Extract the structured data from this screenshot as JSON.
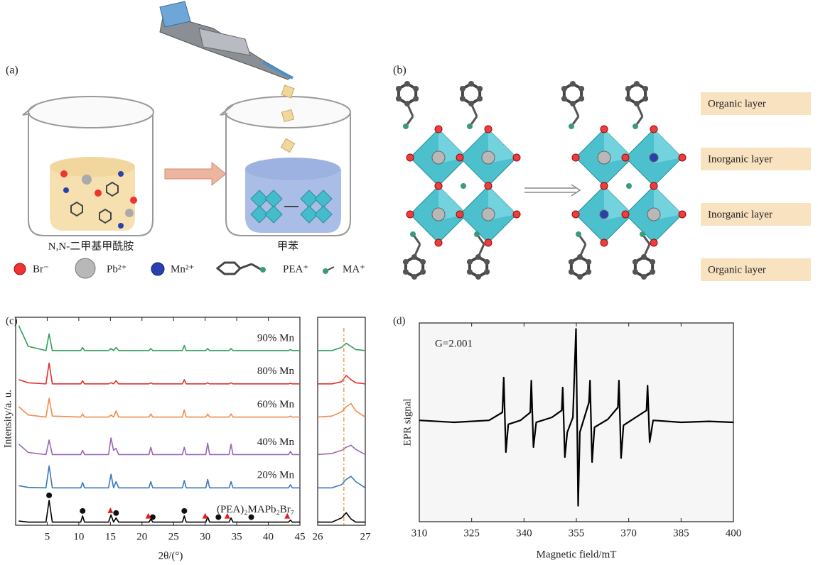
{
  "panel_a": {
    "label": "(a)",
    "solvent_left": "N,N-二甲基甲酰胺",
    "solvent_right": "甲苯",
    "legend": [
      "Br⁻",
      "Pb²⁺",
      "Mn²⁺",
      "PEA⁺",
      "MA⁺"
    ]
  },
  "panel_b": {
    "label": "(b)",
    "layers": [
      "Organic layer",
      "Inorganic layer",
      "Inorganic layer",
      "Organic layer"
    ]
  },
  "chart_data": [
    {
      "type": "line",
      "panel_label": "(c)",
      "xlabel": "2θ/(°)",
      "ylabel": "Intensity/a. u.",
      "xlim": [
        0,
        45
      ],
      "ylim": [
        0,
        10
      ],
      "xticks": [
        5,
        10,
        15,
        20,
        25,
        30,
        35,
        40,
        45
      ],
      "x": [
        0.5,
        2,
        4.8,
        5.3,
        5.8,
        10.3,
        10.6,
        10.9,
        14.7,
        15.1,
        15.5,
        15.9,
        16.3,
        21.1,
        21.4,
        21.7,
        26.4,
        26.7,
        27.0,
        30.1,
        30.4,
        30.7,
        33.8,
        34.1,
        34.4,
        43.2,
        43.5,
        43.8,
        45
      ],
      "series": [
        {
          "name": "90% Mn",
          "color": "#2e9e5a",
          "values": [
            9.6,
            8.6,
            8.4,
            9.2,
            8.4,
            8.4,
            8.55,
            8.4,
            8.4,
            8.5,
            8.4,
            8.55,
            8.4,
            8.4,
            8.5,
            8.4,
            8.4,
            8.65,
            8.4,
            8.4,
            8.5,
            8.4,
            8.4,
            8.5,
            8.4,
            8.4,
            8.45,
            8.4,
            8.4
          ]
        },
        {
          "name": "80% Mn",
          "color": "#e03030",
          "values": [
            7.0,
            6.85,
            6.8,
            7.8,
            6.8,
            6.8,
            6.95,
            6.8,
            6.8,
            6.85,
            6.8,
            6.95,
            6.8,
            6.8,
            6.85,
            6.8,
            6.8,
            7.0,
            6.8,
            6.8,
            6.85,
            6.8,
            6.8,
            6.85,
            6.8,
            6.8,
            6.82,
            6.8,
            6.8
          ]
        },
        {
          "name": "60% Mn",
          "color": "#f08c4a",
          "values": [
            5.7,
            5.3,
            5.2,
            6.1,
            5.25,
            5.2,
            5.35,
            5.2,
            5.2,
            5.3,
            5.2,
            5.5,
            5.2,
            5.2,
            5.35,
            5.2,
            5.2,
            5.55,
            5.2,
            5.2,
            5.35,
            5.2,
            5.2,
            5.35,
            5.2,
            5.2,
            5.25,
            5.2,
            5.2
          ]
        },
        {
          "name": "40% Mn",
          "color": "#9966bb",
          "values": [
            3.9,
            3.5,
            3.4,
            4.1,
            3.4,
            3.4,
            3.6,
            3.4,
            3.4,
            4.2,
            3.6,
            3.7,
            3.4,
            3.4,
            3.75,
            3.4,
            3.4,
            3.75,
            3.4,
            3.4,
            3.95,
            3.4,
            3.4,
            3.9,
            3.4,
            3.4,
            3.55,
            3.4,
            3.4
          ]
        },
        {
          "name": "20% Mn",
          "color": "#3a78c0",
          "values": [
            1.9,
            1.82,
            1.8,
            2.85,
            1.8,
            1.8,
            2.05,
            1.8,
            1.8,
            2.45,
            1.8,
            2.1,
            1.8,
            1.8,
            2.1,
            1.8,
            1.8,
            2.15,
            1.8,
            1.8,
            2.2,
            1.8,
            1.8,
            2.1,
            1.8,
            1.8,
            1.95,
            1.8,
            1.8
          ]
        },
        {
          "name": "(PEA)₂MAPb₂Br₇",
          "color": "#000000",
          "values": [
            0.2,
            0.15,
            0.15,
            1.2,
            0.15,
            0.15,
            0.45,
            0.15,
            0.15,
            0.5,
            0.15,
            0.35,
            0.15,
            0.15,
            0.3,
            0.15,
            0.15,
            0.45,
            0.15,
            0.15,
            0.4,
            0.15,
            0.15,
            0.35,
            0.15,
            0.15,
            0.25,
            0.15,
            0.15
          ]
        }
      ],
      "circle_markers_x": [
        5.3,
        10.6,
        15.9,
        21.7,
        26.7,
        32.1,
        37.3
      ],
      "triangle_markers_x": [
        15,
        21,
        30,
        33.5,
        43
      ]
    },
    {
      "type": "line",
      "xlim": [
        26,
        27
      ],
      "ylim": [
        0,
        10
      ],
      "xticks": [
        26,
        27
      ],
      "x": [
        26,
        26.3,
        26.5,
        26.6,
        26.7,
        26.8,
        27
      ],
      "series": [
        {
          "color": "#2e9e5a",
          "values": [
            8.4,
            8.4,
            8.55,
            8.75,
            8.6,
            8.45,
            8.4
          ]
        },
        {
          "color": "#e03030",
          "values": [
            6.8,
            6.8,
            6.9,
            7.2,
            7.0,
            6.85,
            6.8
          ]
        },
        {
          "color": "#f08c4a",
          "values": [
            5.2,
            5.25,
            5.45,
            5.7,
            5.85,
            5.5,
            5.2
          ]
        },
        {
          "color": "#9966bb",
          "values": [
            3.4,
            3.45,
            3.6,
            3.75,
            3.85,
            3.65,
            3.4
          ]
        },
        {
          "color": "#3a78c0",
          "values": [
            1.8,
            1.8,
            1.95,
            2.2,
            2.35,
            2.1,
            1.8
          ]
        },
        {
          "color": "#000000",
          "values": [
            0.15,
            0.15,
            0.35,
            0.6,
            0.3,
            0.15,
            0.15
          ]
        }
      ],
      "reference_line_x": 26.55
    },
    {
      "type": "line",
      "panel_label": "(d)",
      "annotation": "G=2.001",
      "xlabel": "Magnetic field/mT",
      "ylabel": "EPR signal",
      "xlim": [
        310,
        400
      ],
      "ylim": [
        -1,
        1
      ],
      "xticks": [
        310,
        325,
        340,
        355,
        370,
        385,
        400
      ],
      "x": [
        310,
        320,
        330,
        333.8,
        334.2,
        334.8,
        335.5,
        339,
        341.8,
        342.1,
        342.7,
        343.5,
        348,
        350.8,
        351.1,
        351.7,
        352.4,
        354,
        354.9,
        355.5,
        356,
        358.6,
        358.9,
        359.5,
        360.2,
        364,
        366.9,
        367.2,
        367.8,
        368.5,
        372,
        375.1,
        375.4,
        376,
        377,
        385,
        393,
        400
      ],
      "series": [
        {
          "color": "#000000",
          "values": [
            0.02,
            0.0,
            0.02,
            0.1,
            0.45,
            -0.3,
            -0.02,
            0.02,
            0.1,
            0.42,
            -0.25,
            0.0,
            0.05,
            0.12,
            0.35,
            -0.35,
            -0.1,
            0.05,
            0.94,
            -0.84,
            -0.1,
            0.2,
            0.42,
            -0.4,
            -0.05,
            0.03,
            0.15,
            0.42,
            -0.36,
            -0.03,
            0.05,
            0.12,
            0.37,
            -0.2,
            0.02,
            0.0,
            0.01,
            0.0
          ]
        }
      ]
    }
  ]
}
